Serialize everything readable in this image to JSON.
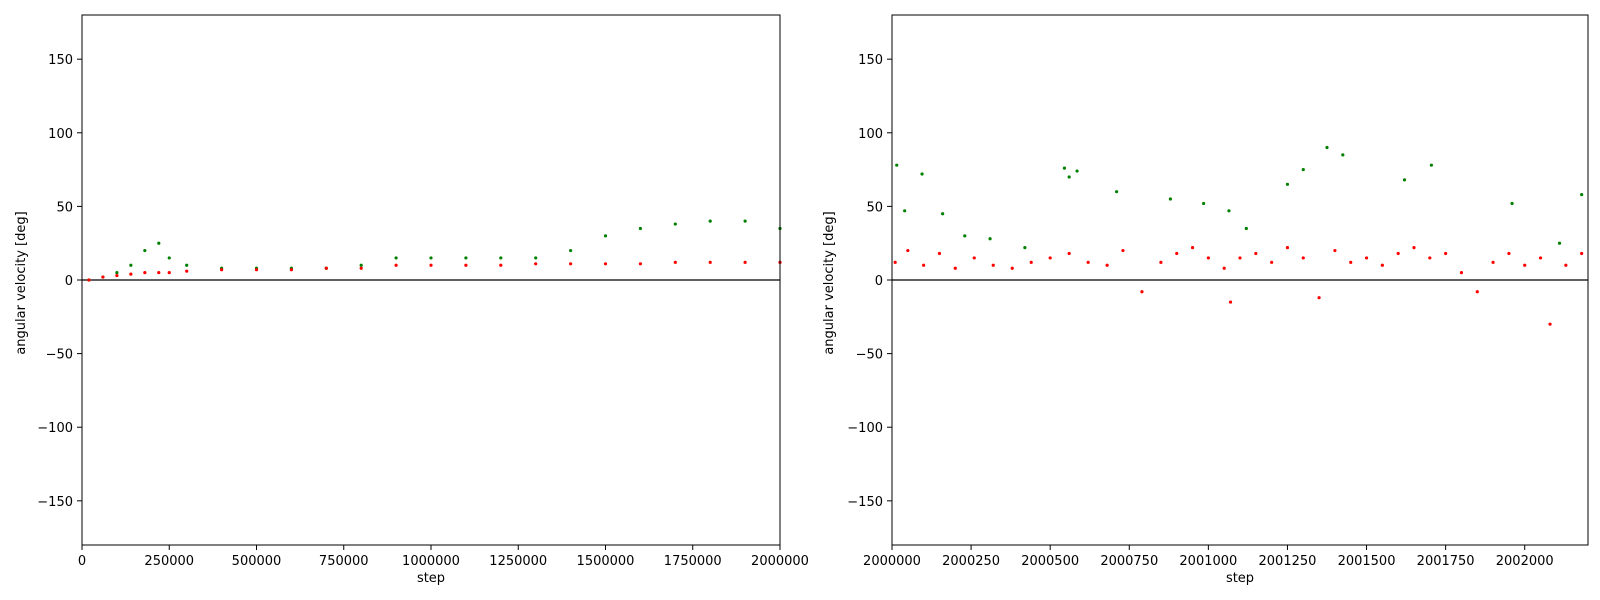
{
  "chart_data": [
    {
      "type": "scatter",
      "title": "",
      "xlabel": "step",
      "ylabel": "angular velocity [deg]",
      "xlim": [
        0,
        2000000
      ],
      "ylim": [
        -180,
        180
      ],
      "xticks": [
        0,
        250000,
        500000,
        750000,
        1000000,
        1250000,
        1500000,
        1750000,
        2000000
      ],
      "yticks": [
        -150,
        -100,
        -50,
        0,
        50,
        100,
        150
      ],
      "hline": 0,
      "grid": false,
      "series": [
        {
          "color": "#008000",
          "x": [
            20000,
            60000,
            100000,
            140000,
            180000,
            220000,
            250000,
            300000,
            400000,
            500000,
            600000,
            700000,
            800000,
            900000,
            1000000,
            1100000,
            1200000,
            1300000,
            1400000,
            1500000,
            1600000,
            1700000,
            1800000,
            1900000,
            2000000
          ],
          "y": [
            0,
            2,
            5,
            10,
            20,
            25,
            15,
            10,
            8,
            8,
            8,
            8,
            10,
            15,
            15,
            15,
            15,
            15,
            20,
            30,
            35,
            38,
            40,
            40,
            35
          ]
        },
        {
          "color": "#ff0000",
          "x": [
            20000,
            60000,
            100000,
            140000,
            180000,
            220000,
            250000,
            300000,
            400000,
            500000,
            600000,
            700000,
            800000,
            900000,
            1000000,
            1100000,
            1200000,
            1300000,
            1400000,
            1500000,
            1600000,
            1700000,
            1800000,
            1900000,
            2000000
          ],
          "y": [
            0,
            2,
            3,
            4,
            5,
            5,
            5,
            6,
            7,
            7,
            7,
            8,
            8,
            10,
            10,
            10,
            10,
            11,
            11,
            11,
            11,
            12,
            12,
            12,
            12
          ]
        }
      ]
    },
    {
      "type": "scatter",
      "title": "",
      "xlabel": "step",
      "ylabel": "angular velocity [deg]",
      "xlim": [
        2000000,
        2002200
      ],
      "ylim": [
        -180,
        180
      ],
      "xticks": [
        2000000,
        2000250,
        2000500,
        2000750,
        2001000,
        2001250,
        2001500,
        2001750,
        2002000
      ],
      "yticks": [
        -150,
        -100,
        -50,
        0,
        50,
        100,
        150
      ],
      "hline": 0,
      "grid": false,
      "series": [
        {
          "color": "#008000",
          "x": [
            2000015,
            2000040,
            2000095,
            2000160,
            2000230,
            2000310,
            2000420,
            2000545,
            2000560,
            2000585,
            2000710,
            2000880,
            2000985,
            2001065,
            2001120,
            2001250,
            2001300,
            2001375,
            2001425,
            2001620,
            2001705,
            2001960,
            2002110,
            2002180
          ],
          "y": [
            78,
            47,
            72,
            45,
            30,
            28,
            22,
            76,
            70,
            74,
            60,
            55,
            52,
            47,
            35,
            65,
            75,
            90,
            85,
            68,
            78,
            52,
            25,
            58
          ]
        },
        {
          "color": "#ff0000",
          "x": [
            2000010,
            2000050,
            2000100,
            2000150,
            2000200,
            2000260,
            2000320,
            2000380,
            2000440,
            2000500,
            2000560,
            2000620,
            2000680,
            2000730,
            2000790,
            2000850,
            2000900,
            2000950,
            2001000,
            2001050,
            2001070,
            2001100,
            2001150,
            2001200,
            2001250,
            2001300,
            2001350,
            2001400,
            2001450,
            2001500,
            2001550,
            2001600,
            2001650,
            2001700,
            2001750,
            2001800,
            2001850,
            2001900,
            2001950,
            2002000,
            2002050,
            2002080,
            2002130,
            2002180
          ],
          "y": [
            12,
            20,
            10,
            18,
            8,
            15,
            10,
            8,
            12,
            15,
            18,
            12,
            10,
            20,
            -8,
            12,
            18,
            22,
            15,
            8,
            -15,
            15,
            18,
            12,
            22,
            15,
            -12,
            20,
            12,
            15,
            10,
            18,
            22,
            15,
            18,
            5,
            -8,
            12,
            18,
            10,
            15,
            -30,
            10,
            18
          ]
        }
      ]
    }
  ]
}
